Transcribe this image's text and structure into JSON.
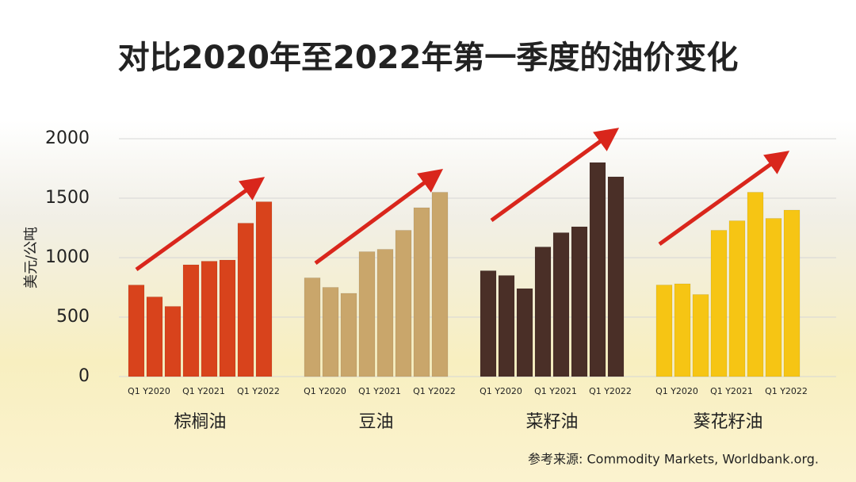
{
  "chart_data": {
    "type": "bar",
    "title": "对比2020年至2022年第一季度的油价变化",
    "y_label": "美元/公吨",
    "source": "参考来源: Commodity Markets, Worldbank.org.",
    "categories": [
      "Q1 Y2020",
      null,
      null,
      "Q1 Y2021",
      null,
      null,
      "Q1 Y2022",
      null
    ],
    "ylim": [
      0,
      2000
    ],
    "yticks": [
      0,
      500,
      1000,
      1500,
      2000
    ],
    "grid": true,
    "series": [
      {
        "name": "棕榈油",
        "color": "#d8431c",
        "values": [
          770,
          670,
          590,
          940,
          970,
          980,
          1290,
          1470
        ]
      },
      {
        "name": "豆油",
        "color": "#c9a66b",
        "values": [
          830,
          750,
          700,
          1050,
          1070,
          1230,
          1420,
          1550
        ]
      },
      {
        "name": "菜籽油",
        "color": "#4a2f27",
        "values": [
          890,
          850,
          740,
          1090,
          1210,
          1260,
          1800,
          1680
        ]
      },
      {
        "name": "葵花籽油",
        "color": "#f6c514",
        "values": [
          770,
          780,
          690,
          1230,
          1310,
          1550,
          1330,
          1400
        ]
      }
    ]
  }
}
